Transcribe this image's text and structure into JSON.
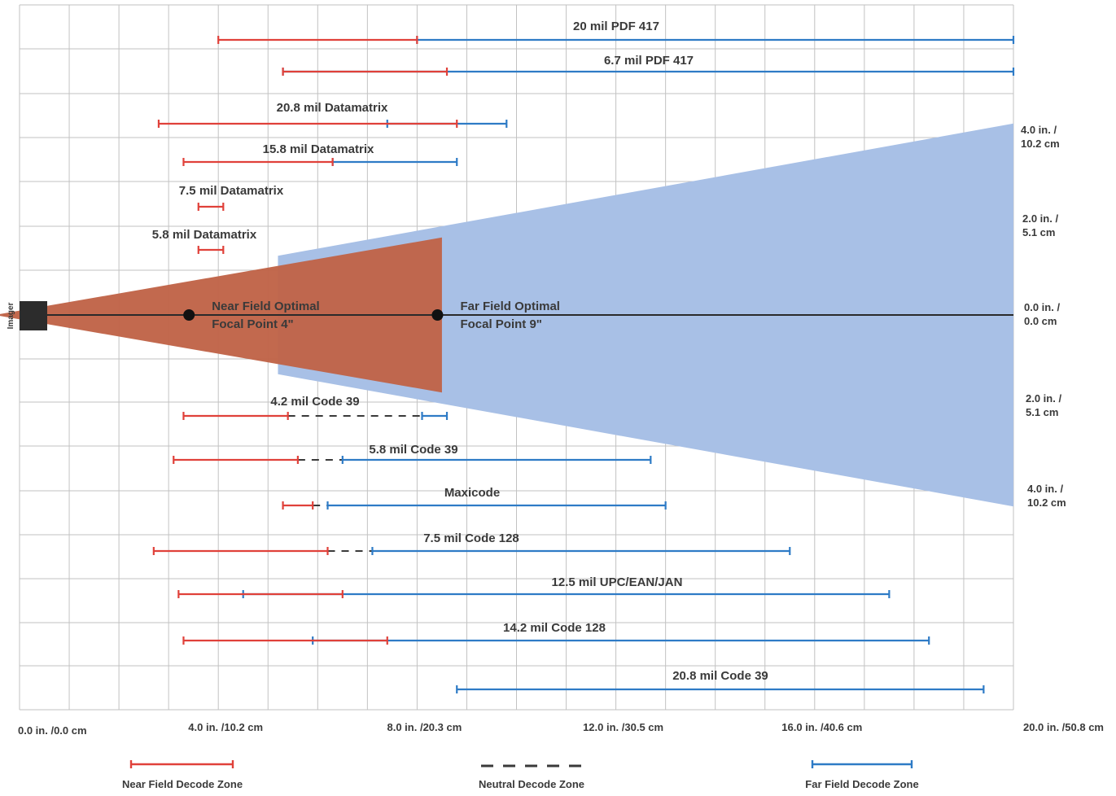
{
  "chart_data": {
    "type": "range",
    "x_unit": "in",
    "xlim": [
      0,
      20
    ],
    "x_ticks": [
      {
        "x": 0,
        "label": "0.0 in. /0.0 cm"
      },
      {
        "x": 4,
        "label": "4.0 in. /10.2 cm"
      },
      {
        "x": 8,
        "label": "8.0 in. /20.3 cm"
      },
      {
        "x": 12,
        "label": "12.0 in. /30.5 cm"
      },
      {
        "x": 16,
        "label": "16.0 in. /40.6 cm"
      },
      {
        "x": 20,
        "label": "20.0 in. /50.8 cm"
      }
    ],
    "y_ticks": [
      {
        "y": 4,
        "line1": "4.0 in. /",
        "line2": "10.2 cm"
      },
      {
        "y": 2,
        "line1": "2.0 in. /",
        "line2": "5.1 cm"
      },
      {
        "y": 0,
        "line1": "0.0 in. /",
        "line2": "0.0 cm"
      },
      {
        "y": -2,
        "line1": "2.0 in. /",
        "line2": "5.1 cm"
      },
      {
        "y": -4,
        "line1": "4.0 in. /",
        "line2": "10.2 cm"
      }
    ],
    "imager_label": "Imager",
    "near_field_focal_point": {
      "x": 4,
      "line1": "Near Field Optimal",
      "line2": "Focal Point 4\""
    },
    "far_field_focal_point": {
      "x": 9,
      "line1": "Far Field Optimal",
      "line2": "Focal Point 9\""
    },
    "near_field_cone": {
      "start_x": -0.8,
      "end_x": 8.5,
      "half_height_at_end": 1.7
    },
    "far_field_cone": {
      "start_x": 5.2,
      "end_x": 20,
      "half_height_at_start": 1.3,
      "half_height_at_end": 4.2
    },
    "symbologies": [
      {
        "name": "20 mil PDF 417",
        "near": [
          4.0,
          8.0
        ],
        "neutral": null,
        "far": [
          8.0,
          20.0
        ]
      },
      {
        "name": "6.7 mil PDF 417",
        "near": [
          5.3,
          8.6
        ],
        "neutral": null,
        "far": [
          5.3,
          20.0
        ]
      },
      {
        "name": "20.8 mil Datamatrix",
        "near": [
          2.8,
          8.8
        ],
        "neutral": null,
        "far": [
          7.4,
          9.8
        ]
      },
      {
        "name": "15.8 mil Datamatrix",
        "near": [
          3.3,
          6.3
        ],
        "neutral": null,
        "far": [
          6.3,
          8.8
        ]
      },
      {
        "name": "7.5 mil Datamatrix",
        "near": [
          3.6,
          4.1
        ],
        "neutral": null,
        "far": null
      },
      {
        "name": "5.8 mil Datamatrix",
        "near": [
          3.6,
          4.1
        ],
        "neutral": null,
        "far": null
      },
      {
        "name": "4.2 mil Code 39",
        "near": [
          3.3,
          5.4
        ],
        "neutral": [
          5.4,
          8.1
        ],
        "far": [
          8.1,
          8.6
        ]
      },
      {
        "name": "5.8 mil Code 39",
        "near": [
          3.1,
          5.6
        ],
        "neutral": [
          5.6,
          6.5
        ],
        "far": [
          6.5,
          12.7
        ]
      },
      {
        "name": "Maxicode",
        "near": [
          5.3,
          5.9
        ],
        "neutral": [
          5.9,
          6.2
        ],
        "far": [
          6.2,
          13.0
        ]
      },
      {
        "name": "7.5 mil Code 128",
        "near": [
          2.7,
          6.2
        ],
        "neutral": [
          6.2,
          7.1
        ],
        "far": [
          7.1,
          15.5
        ]
      },
      {
        "name": "12.5 mil UPC/EAN/JAN",
        "near": [
          3.2,
          6.5
        ],
        "neutral": null,
        "far": [
          4.5,
          17.5
        ]
      },
      {
        "name": "14.2 mil Code 128",
        "near": [
          3.3,
          7.4
        ],
        "neutral": null,
        "far": [
          5.9,
          18.3
        ]
      },
      {
        "name": "20.8 mil Code 39",
        "near": null,
        "neutral": null,
        "far": [
          8.8,
          19.4
        ]
      }
    ],
    "legend": [
      {
        "key": "near",
        "label": "Near Field Decode Zone"
      },
      {
        "key": "neutral",
        "label": "Neutral Decode Zone"
      },
      {
        "key": "far",
        "label": "Far Field Decode Zone"
      }
    ],
    "colors": {
      "near": "#e0413a",
      "far": "#2e7bc6",
      "neutral": "#3a3a3a",
      "near_cone": "#c06448",
      "far_cone": "#a8c0e6",
      "grid": "#c2c2c2",
      "axis_line": "#2a2a2a",
      "imager": "#2c2c2c"
    }
  }
}
